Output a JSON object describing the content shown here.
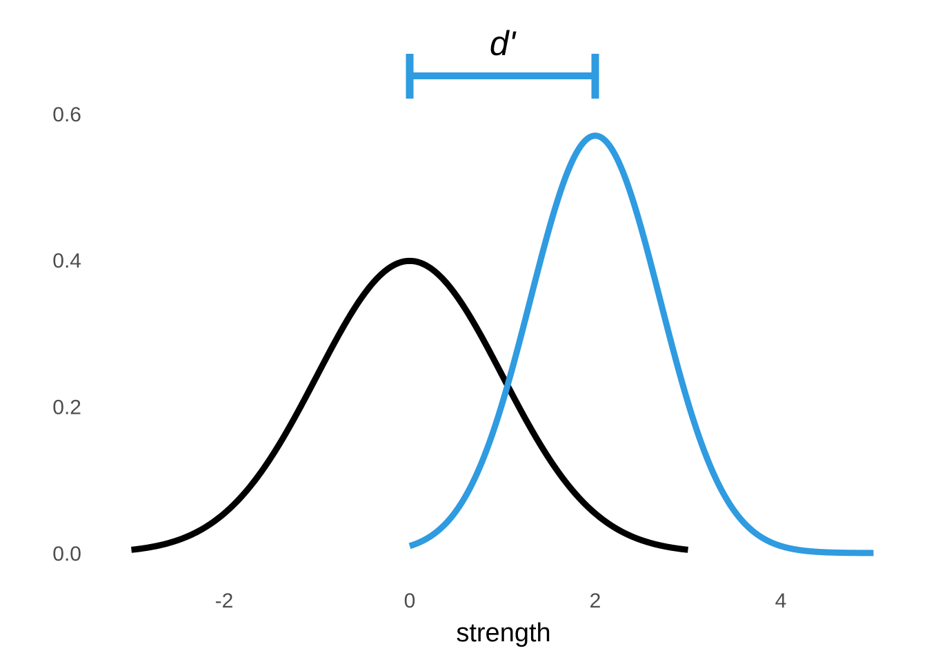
{
  "chart_data": {
    "type": "line",
    "title": "",
    "xlabel": "strength",
    "ylabel": "",
    "xlim": [
      -3,
      5
    ],
    "ylim": [
      0,
      0.6
    ],
    "x_ticks": [
      {
        "value": -2,
        "label": "-2"
      },
      {
        "value": 0,
        "label": "0"
      },
      {
        "value": 2,
        "label": "2"
      },
      {
        "value": 4,
        "label": "4"
      }
    ],
    "y_ticks": [
      {
        "value": 0.0,
        "label": "0.0"
      },
      {
        "value": 0.2,
        "label": "0.2"
      },
      {
        "value": 0.4,
        "label": "0.4"
      },
      {
        "value": 0.6,
        "label": "0.6"
      }
    ],
    "grid": false,
    "legend": "none",
    "series": [
      {
        "distribution": "normal",
        "mean": 0,
        "sd": 1,
        "x_range": [
          -3,
          3
        ],
        "peak": 0.4,
        "color": "#000000"
      },
      {
        "distribution": "normal",
        "mean": 2,
        "sd": 0.7,
        "x_range": [
          0,
          5
        ],
        "peak": 0.57,
        "color": "#2f9be0"
      }
    ],
    "annotation": {
      "label": "d'",
      "from_x": 0,
      "to_x": 2,
      "y": 0.65,
      "color": "#2f9be0"
    }
  }
}
